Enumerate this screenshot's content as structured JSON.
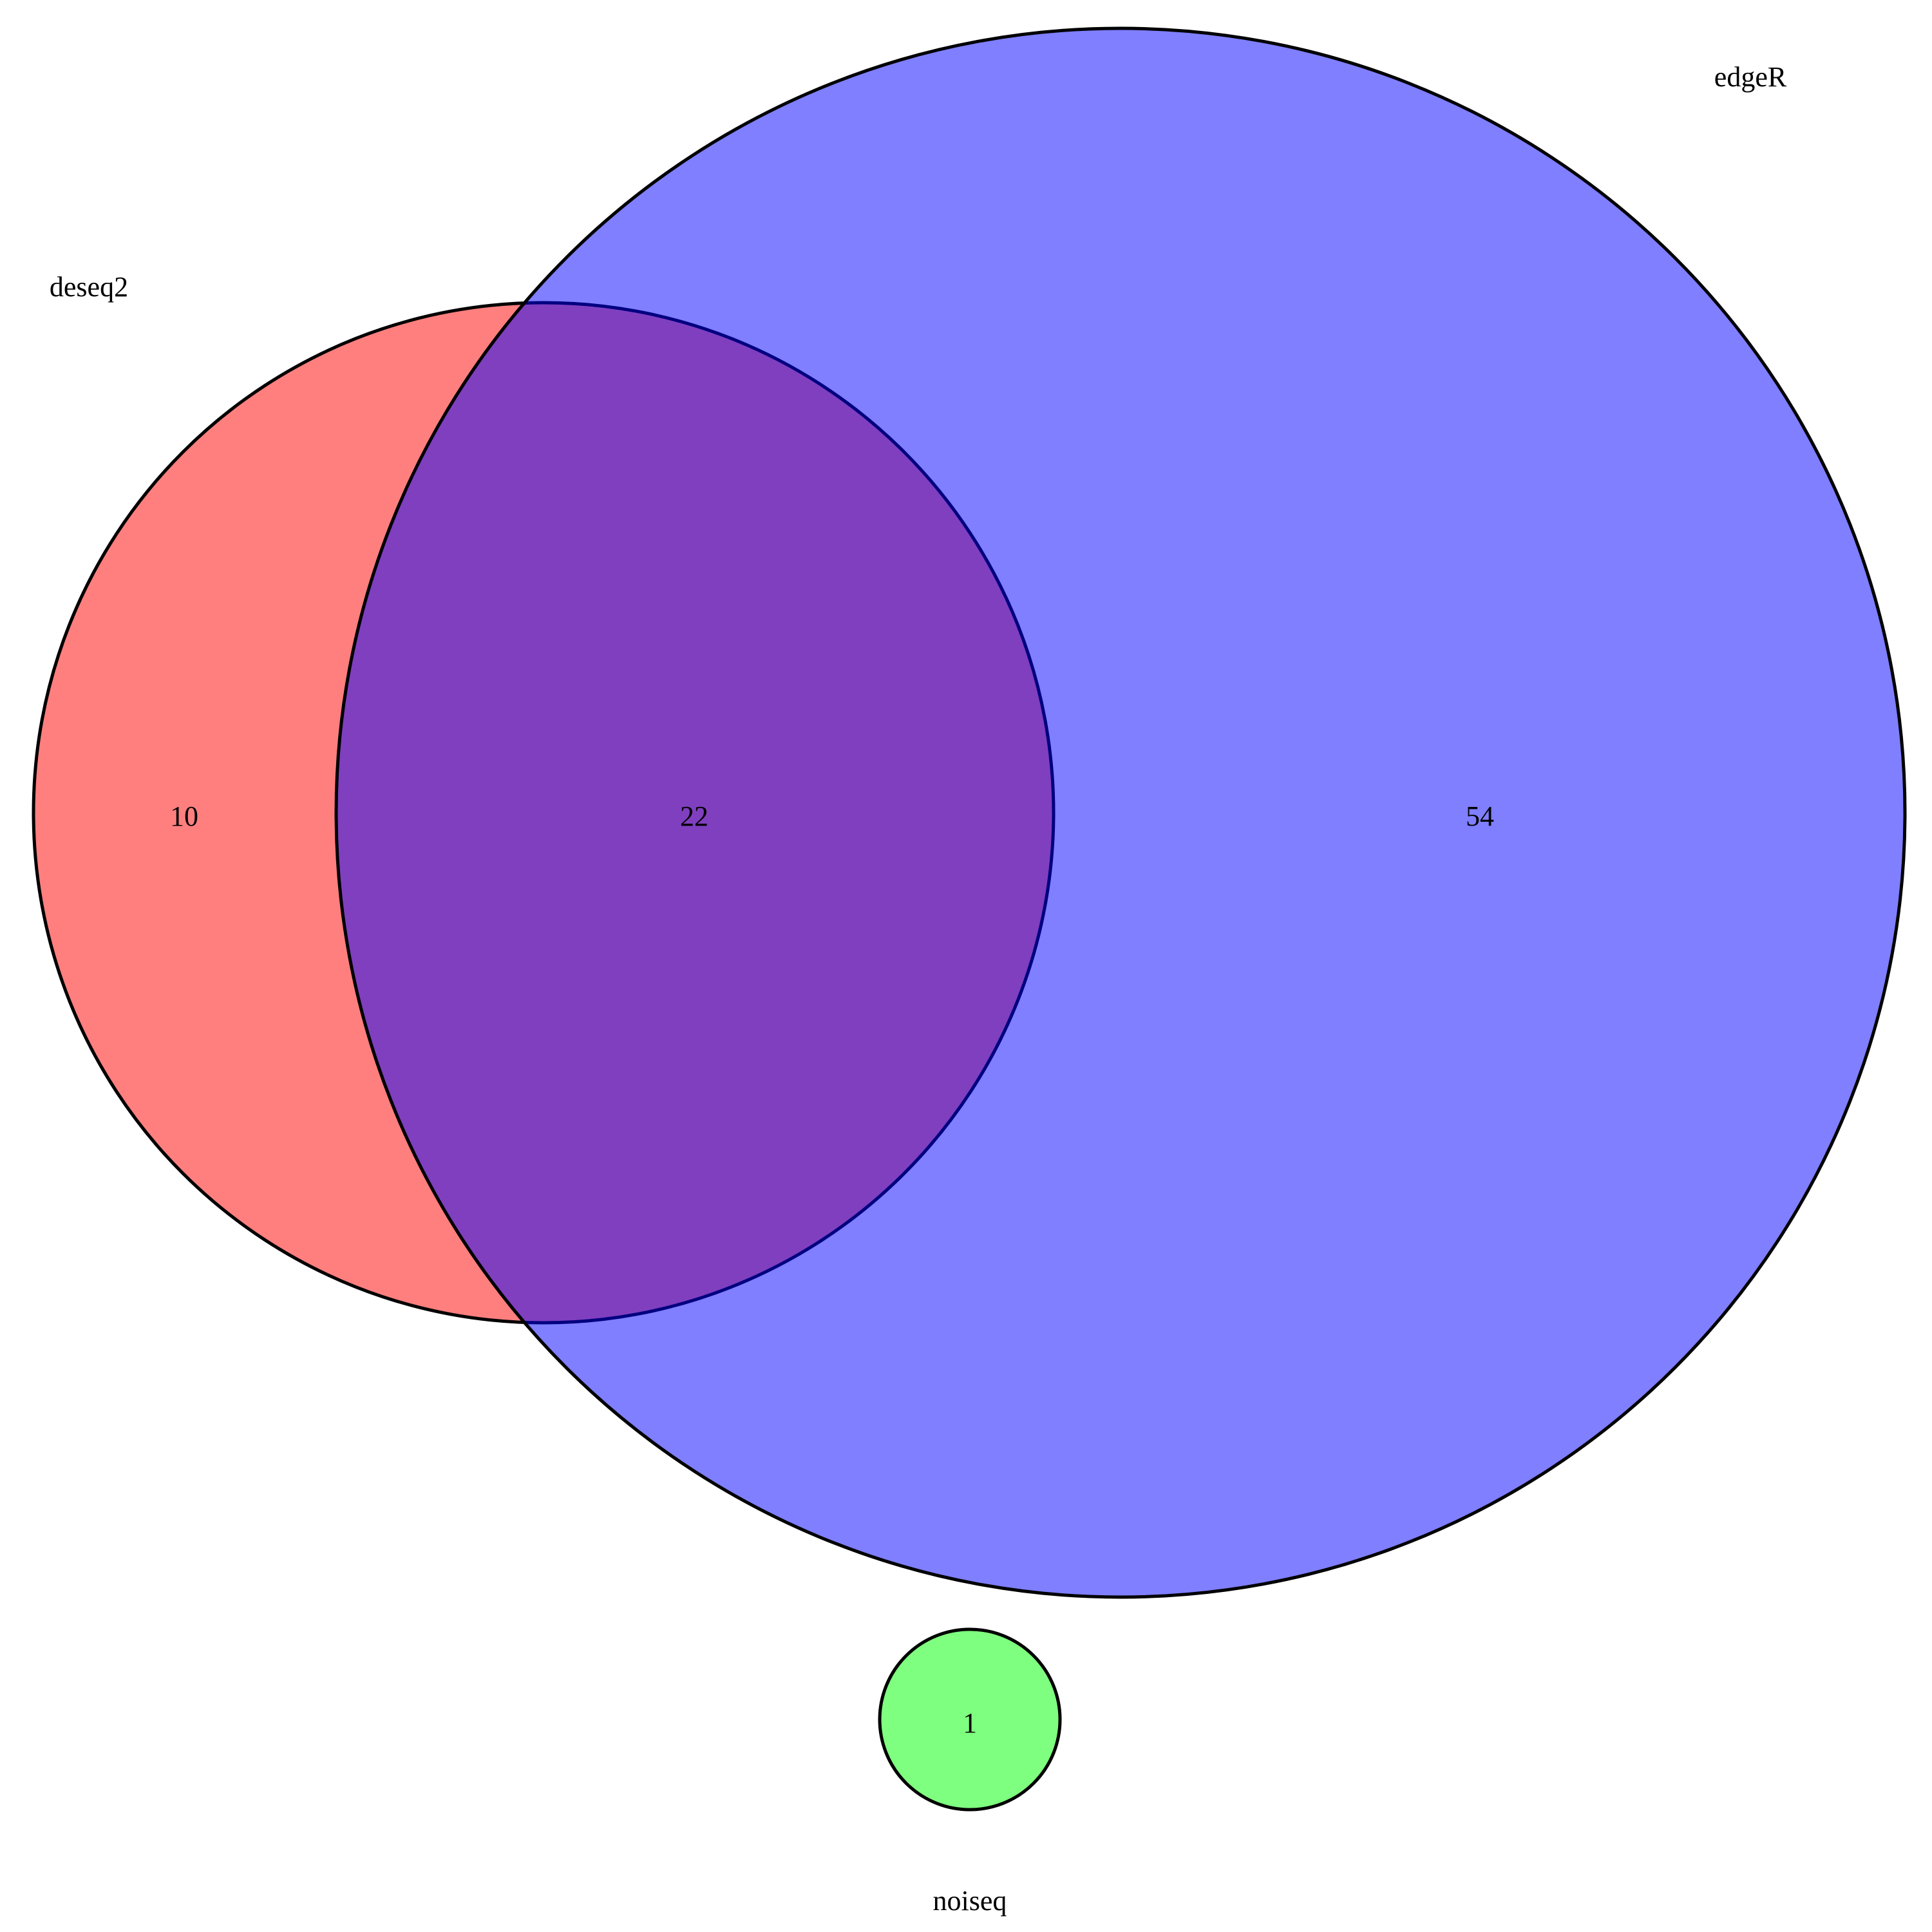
{
  "sets": [
    {
      "id": "deseq2",
      "label": "deseq2",
      "color": "#FF0000"
    },
    {
      "id": "edger",
      "label": "edgeR",
      "color": "#0000FF"
    },
    {
      "id": "noiseq",
      "label": "noiseq",
      "color": "#00FF00"
    }
  ],
  "regions": {
    "deseq2_only": "10",
    "deseq2_edger": "22",
    "edger_only": "54",
    "noiseq_only": "1"
  },
  "fill_opacity": 0.5
}
